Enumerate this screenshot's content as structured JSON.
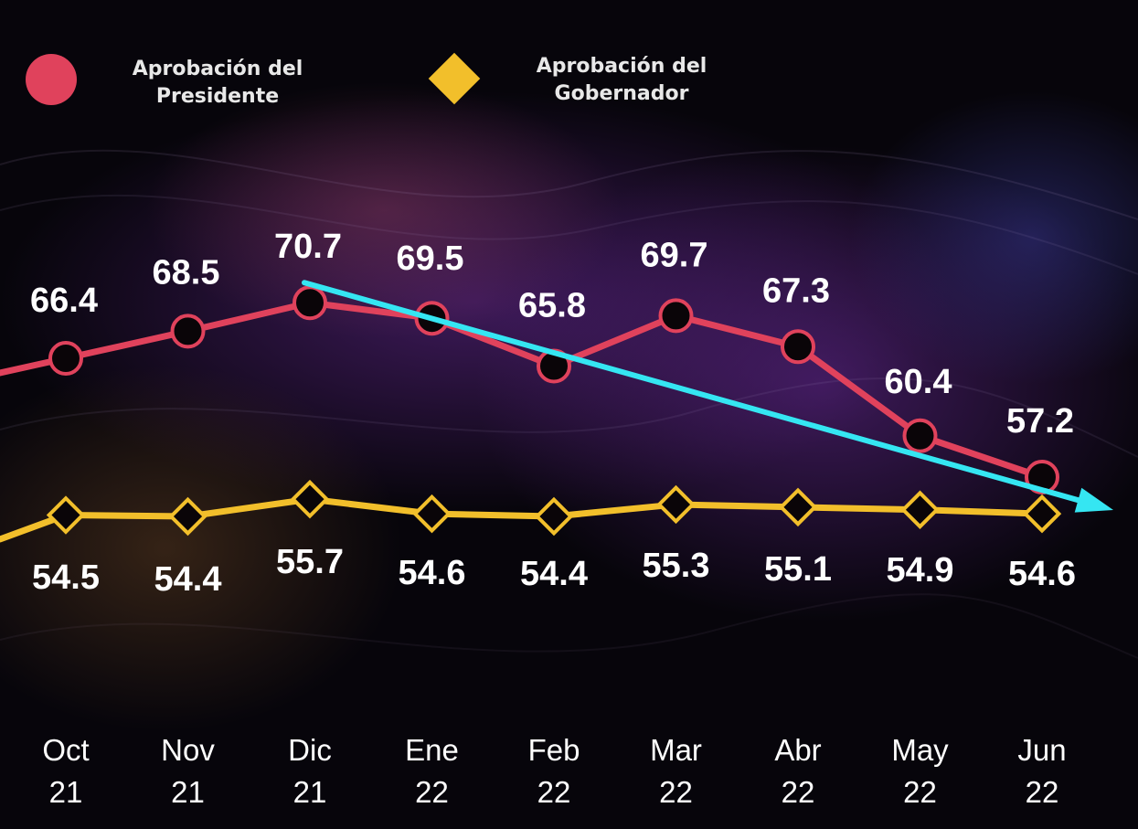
{
  "chart_data": {
    "type": "line",
    "categories": [
      [
        "Oct",
        "21"
      ],
      [
        "Nov",
        "21"
      ],
      [
        "Dic",
        "21"
      ],
      [
        "Ene",
        "22"
      ],
      [
        "Feb",
        "22"
      ],
      [
        "Mar",
        "22"
      ],
      [
        "Abr",
        "22"
      ],
      [
        "May",
        "22"
      ],
      [
        "Jun",
        "22"
      ]
    ],
    "series": [
      {
        "name": "Aprobación del Presidente",
        "name_lines": [
          "Aprobación del",
          "Presidente"
        ],
        "values": [
          66.4,
          68.5,
          70.7,
          69.5,
          65.8,
          69.7,
          67.3,
          60.4,
          57.2
        ],
        "labels": [
          "66.4",
          "68.5",
          "70.7",
          "69.5",
          "65.8",
          "69.7",
          "67.3",
          "60.4",
          "57.2"
        ],
        "color": "#e0425c",
        "marker": "circle"
      },
      {
        "name": "Aprobación del Gobernador",
        "name_lines": [
          "Aprobación del",
          "Gobernador"
        ],
        "values": [
          54.5,
          54.4,
          55.7,
          54.6,
          54.4,
          55.3,
          55.1,
          54.9,
          54.6
        ],
        "labels": [
          "54.5",
          "54.4",
          "55.7",
          "54.6",
          "54.4",
          "55.3",
          "55.1",
          "54.9",
          "54.6"
        ],
        "color": "#f2bf2b",
        "marker": "diamond"
      }
    ],
    "trend_arrow": {
      "color": "#35e6f2",
      "from_category": 2,
      "from_value": 70.7,
      "to_value": 57.2
    },
    "title": "",
    "xlabel": "",
    "ylabel": "",
    "grid": false,
    "legend_position": "top-left",
    "background": "#08050c"
  }
}
